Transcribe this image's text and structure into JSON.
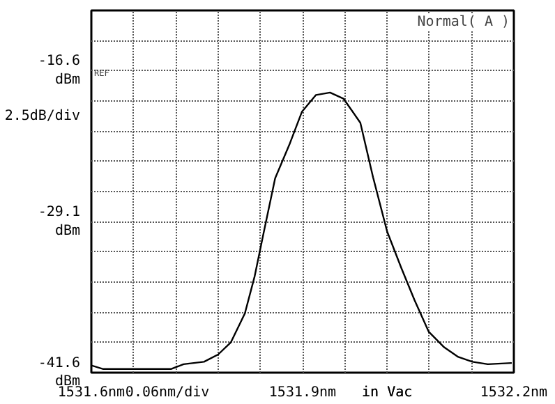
{
  "chart_data": {
    "type": "line",
    "ylabel": "2.5dB/div",
    "xlabel": "0.06nm/div",
    "x": [
      1531.6,
      1531.617,
      1531.713,
      1531.731,
      1531.76,
      1531.78,
      1531.798,
      1531.818,
      1531.832,
      1531.844,
      1531.861,
      1531.882,
      1531.899,
      1531.919,
      1531.939,
      1531.958,
      1531.982,
      1532.0,
      1532.02,
      1532.04,
      1532.059,
      1532.079,
      1532.101,
      1532.121,
      1532.141,
      1532.163,
      1532.197
    ],
    "series": [
      {
        "color": "#000000",
        "values": [
          -41.0,
          -41.3,
          -41.3,
          -40.9,
          -40.7,
          -40.1,
          -39.1,
          -36.7,
          -33.6,
          -30.2,
          -25.5,
          -22.6,
          -20.0,
          -18.6,
          -18.4,
          -18.9,
          -20.9,
          -25.4,
          -29.9,
          -32.9,
          -35.6,
          -38.2,
          -39.5,
          -40.3,
          -40.7,
          -40.9,
          -40.8
        ]
      }
    ],
    "xlim": [
      1531.6,
      1532.2
    ],
    "ylim": [
      -41.6,
      -11.6
    ],
    "xticks": [
      {
        "value": 1531.6,
        "label": "1531.6nm"
      },
      {
        "value": 1531.66,
        "label": null
      },
      {
        "value": 1531.72,
        "label": null
      },
      {
        "value": 1531.78,
        "label": null
      },
      {
        "value": 1531.84,
        "label": null
      },
      {
        "value": 1531.9,
        "label": "1531.9nm"
      },
      {
        "value": 1531.96,
        "label": null
      },
      {
        "value": 1532.02,
        "label": null
      },
      {
        "value": 1532.08,
        "label": null
      },
      {
        "value": 1532.14,
        "label": null
      },
      {
        "value": 1532.2,
        "label": "1532.2nm"
      }
    ],
    "yticks": [
      {
        "value": -41.6,
        "label": "-41.6\ndBm"
      },
      {
        "value": -39.1,
        "label": null
      },
      {
        "value": -36.6,
        "label": null
      },
      {
        "value": -34.1,
        "label": null
      },
      {
        "value": -31.6,
        "label": null
      },
      {
        "value": -29.1,
        "label": "-29.1\ndBm"
      },
      {
        "value": -26.6,
        "label": null
      },
      {
        "value": -24.1,
        "label": null
      },
      {
        "value": -21.6,
        "label": null
      },
      {
        "value": -19.1,
        "label": null
      },
      {
        "value": -16.6,
        "label": "-16.6\ndBm"
      },
      {
        "value": -14.1,
        "label": null
      },
      {
        "value": -11.6,
        "label": null
      }
    ],
    "grid": true,
    "line_style": "solid",
    "marker": "none",
    "annotations": [
      "REF",
      "in Vac",
      "Normal( A )"
    ]
  }
}
